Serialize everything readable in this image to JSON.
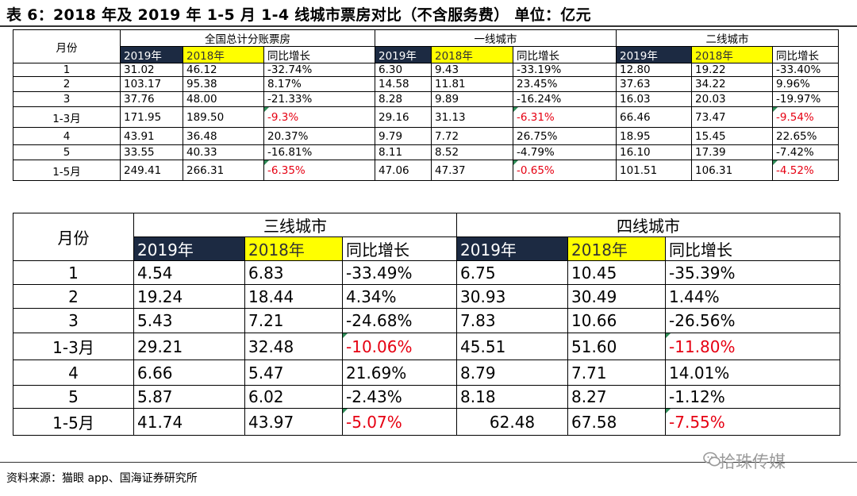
{
  "title": "表 6：2018 年及 2019 年 1-5 月 1-4 线城市票房对比（不含服务费）   单位：亿元",
  "table1": {
    "month_header": "月份",
    "groups": [
      "全国总计分账票房",
      "一线城市",
      "二线城市"
    ],
    "sub_headers": [
      "2019年",
      "2018年",
      "同比增长"
    ],
    "rows": [
      {
        "m": "1",
        "v": [
          "31.02",
          "46.12",
          "-32.74%",
          "6.30",
          "9.43",
          "-33.19%",
          "12.80",
          "19.22",
          "-33.40%"
        ],
        "red": false
      },
      {
        "m": "2",
        "v": [
          "103.17",
          "95.38",
          "8.17%",
          "14.58",
          "11.81",
          "23.45%",
          "37.63",
          "34.22",
          "9.96%"
        ],
        "red": false
      },
      {
        "m": "3",
        "v": [
          "37.76",
          "48.00",
          "-21.33%",
          "8.28",
          "9.89",
          "-16.24%",
          "16.03",
          "20.03",
          "-19.97%"
        ],
        "red": false
      },
      {
        "m": "1-3月",
        "v": [
          "171.95",
          "189.50",
          "-9.3%",
          "29.16",
          "31.13",
          "-6.31%",
          "66.46",
          "73.47",
          "-9.54%"
        ],
        "red": true
      },
      {
        "m": "4",
        "v": [
          "43.91",
          "36.48",
          "20.37%",
          "9.79",
          "7.72",
          "26.75%",
          "18.95",
          "15.45",
          "22.65%"
        ],
        "red": false
      },
      {
        "m": "5",
        "v": [
          "33.55",
          "40.33",
          "-16.81%",
          "8.11",
          "8.52",
          "-4.79%",
          "16.10",
          "17.39",
          "-7.42%"
        ],
        "red": false
      },
      {
        "m": "1-5月",
        "v": [
          "249.41",
          "266.31",
          "-6.35%",
          "47.06",
          "47.37",
          "-0.65%",
          "101.51",
          "106.31",
          "-4.52%"
        ],
        "red": true
      }
    ]
  },
  "table2": {
    "month_header": "月份",
    "groups": [
      "三线城市",
      "四线城市"
    ],
    "sub_headers": [
      "2019年",
      "2018年",
      "同比增长"
    ],
    "rows": [
      {
        "m": "1",
        "v": [
          "4.54",
          "6.83",
          "-33.49%",
          "6.75",
          "10.45",
          "-35.39%"
        ],
        "red": false
      },
      {
        "m": "2",
        "v": [
          "19.24",
          "18.44",
          "4.34%",
          "30.93",
          "30.49",
          "1.44%"
        ],
        "red": false
      },
      {
        "m": "3",
        "v": [
          "5.43",
          "7.21",
          "-24.68%",
          "7.83",
          "10.66",
          "-26.56%"
        ],
        "red": false
      },
      {
        "m": "1-3月",
        "v": [
          "29.21",
          "32.48",
          "-10.06%",
          "45.51",
          "51.60",
          "-11.80%"
        ],
        "red": true
      },
      {
        "m": "4",
        "v": [
          "6.66",
          "5.47",
          "21.69%",
          "8.79",
          "7.71",
          "14.01%"
        ],
        "red": false
      },
      {
        "m": "5",
        "v": [
          "5.87",
          "6.02",
          "-2.43%",
          "8.18",
          "8.27",
          "-1.12%"
        ],
        "red": false
      },
      {
        "m": "1-5月",
        "v": [
          "41.74",
          "43.97",
          "-5.07%",
          "62.48",
          "67.58",
          "-7.55%"
        ],
        "red": true
      }
    ]
  },
  "source": "资料来源：猫眼 app、国海证券研究所",
  "watermark": "拾珠传媒",
  "colors": {
    "header_dark": "#1c2a42",
    "header_yellow": "#ffff00",
    "negative_red": "#e60012"
  }
}
